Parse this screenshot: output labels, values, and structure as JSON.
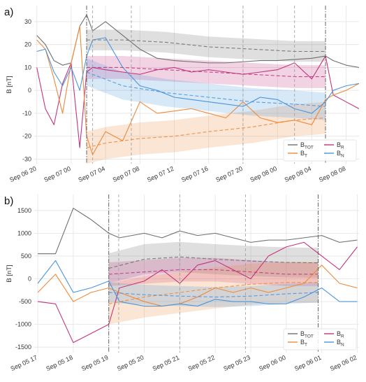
{
  "chart_data": [
    {
      "type": "line",
      "panel_label": "a)",
      "ylabel": "B [nT]",
      "ylim": [
        -32,
        37
      ],
      "yticks": [
        -30,
        -20,
        -10,
        0,
        10,
        20,
        30
      ],
      "xlim": [
        -0.3,
        37.5
      ],
      "xtick_hours": [
        0,
        4,
        8,
        12,
        16,
        20,
        24,
        28,
        32,
        36
      ],
      "xtick_labels": [
        "Sep 06 20",
        "Sep 07 00",
        "Sep 07 04",
        "Sep 07 08",
        "Sep 07 12",
        "Sep 07 16",
        "Sep 07 20",
        "Sep 08 00",
        "Sep 08 04",
        "Sep 08 08"
      ],
      "grid": true,
      "legend_position": "bottom-right",
      "vlines_dashdot": [
        5.8,
        33.6
      ],
      "vlines_dashed": [
        6.5,
        11.0,
        24.0,
        30.0
      ],
      "series": [
        {
          "name": "B",
          "sub": "TOT",
          "color": "#6f6f6f",
          "x": [
            0,
            1,
            2,
            3,
            4,
            5,
            5.8,
            6.5,
            8,
            10,
            12,
            14,
            16,
            18,
            20,
            22,
            24,
            26,
            28,
            30,
            32,
            33.6,
            34.5,
            36,
            37.5
          ],
          "y": [
            24,
            20,
            13,
            11,
            12,
            28,
            33,
            26,
            30,
            24,
            18,
            14,
            13,
            12.5,
            12,
            12,
            12.5,
            13,
            13,
            13.5,
            14,
            15,
            13,
            11,
            10
          ]
        },
        {
          "name": "B",
          "sub": "R",
          "color": "#c2357e",
          "x": [
            0,
            1,
            2,
            3,
            4,
            5,
            5.8,
            6.5,
            8,
            10,
            12,
            14,
            16,
            18,
            20,
            22,
            24,
            26,
            28,
            30,
            32,
            33.6,
            34.5,
            36,
            37.5
          ],
          "y": [
            10,
            -8,
            -15,
            3,
            12,
            -25,
            8,
            10,
            9,
            8,
            7,
            9,
            10,
            8,
            9,
            8,
            7,
            8,
            9,
            12,
            5,
            15,
            -2,
            -5,
            -8
          ]
        },
        {
          "name": "B",
          "sub": "T",
          "color": "#ee8a3a",
          "x": [
            0,
            1,
            2,
            3,
            4,
            5,
            5.8,
            6.5,
            8,
            10,
            12,
            14,
            16,
            18,
            20,
            22,
            24,
            26,
            28,
            30,
            32,
            33.6,
            34.5,
            36,
            37.5
          ],
          "y": [
            22,
            18,
            5,
            -10,
            12,
            28,
            -20,
            -28,
            -18,
            -22,
            -5,
            -10,
            -9,
            -8,
            -10,
            -12,
            -5,
            -12,
            -14,
            -13,
            -15,
            -4,
            -2,
            0,
            3
          ]
        },
        {
          "name": "B",
          "sub": "N",
          "color": "#4a95dc",
          "x": [
            0,
            1,
            2,
            3,
            4,
            5,
            5.8,
            6.5,
            8,
            10,
            12,
            14,
            16,
            18,
            20,
            22,
            24,
            26,
            28,
            30,
            32,
            33.6,
            34.5,
            36,
            37.5
          ],
          "y": [
            17,
            18,
            8,
            2,
            10,
            0,
            15,
            22,
            23,
            10,
            2,
            0,
            -3,
            -4,
            -5,
            -6,
            -7,
            -3,
            -4,
            -8,
            -10,
            -5,
            0,
            2,
            3
          ]
        },
        {
          "name": "B",
          "sub": "TOT",
          "color": "#6f6f6f",
          "style": "model",
          "band_width": 4.5,
          "x": [
            5.8,
            10,
            15,
            20,
            25,
            30,
            33.6
          ],
          "y": [
            22,
            22,
            21,
            19,
            18,
            17,
            17
          ]
        },
        {
          "name": "B",
          "sub": "R",
          "color": "#c2357e",
          "style": "model",
          "band_width": 5,
          "x": [
            5.8,
            10,
            15,
            20,
            25,
            30,
            33.6
          ],
          "y": [
            10,
            10,
            9,
            8,
            7,
            6,
            6
          ]
        },
        {
          "name": "B",
          "sub": "T",
          "color": "#ee8a3a",
          "style": "model",
          "band_width": 7,
          "x": [
            5.8,
            8,
            12,
            16,
            20,
            25,
            30,
            33.6
          ],
          "y": [
            -25,
            -23,
            -21,
            -20,
            -18,
            -16,
            -13,
            -12
          ]
        },
        {
          "name": "B",
          "sub": "N",
          "color": "#4a95dc",
          "style": "model",
          "band_width": 6,
          "x": [
            5.8,
            10,
            15,
            20,
            25,
            30,
            33.6
          ],
          "y": [
            8,
            2,
            -1,
            -3,
            -5,
            -6,
            -7
          ]
        }
      ]
    },
    {
      "type": "line",
      "panel_label": "b)",
      "ylabel": "B [nT]",
      "ylim": [
        -1620,
        1850
      ],
      "yticks": [
        -1500,
        -1000,
        -500,
        0,
        500,
        1000,
        1500
      ],
      "xlim": [
        -0.1,
        9.05
      ],
      "xtick_hours": [
        0,
        1,
        2,
        3,
        4,
        5,
        6,
        7,
        8,
        9
      ],
      "xtick_labels": [
        "Sep 05 17",
        "Sep 05 18",
        "Sep 05 19",
        "Sep 05 20",
        "Sep 05 21",
        "Sep 05 22",
        "Sep 05 23",
        "Sep 06 00",
        "Sep 06 01",
        "Sep 06 02"
      ],
      "grid": true,
      "legend_position": "bottom-right",
      "vlines_dashdot": [
        2.0,
        7.9
      ],
      "vlines_dashed": [
        2.28,
        4.0,
        5.85
      ],
      "series": [
        {
          "name": "B",
          "sub": "TOT",
          "color": "#6f6f6f",
          "x": [
            0,
            0.5,
            1,
            1.5,
            2,
            2.3,
            3,
            3.5,
            4,
            4.5,
            5,
            5.5,
            6,
            6.5,
            7,
            7.5,
            8,
            8.5,
            9
          ],
          "y": [
            550,
            550,
            1550,
            1300,
            1000,
            900,
            1000,
            900,
            1050,
            950,
            1000,
            900,
            800,
            850,
            850,
            900,
            950,
            800,
            850
          ]
        },
        {
          "name": "B",
          "sub": "R",
          "color": "#c2357e",
          "x": [
            0,
            0.5,
            1,
            1.5,
            2,
            2.3,
            3,
            3.5,
            4,
            4.5,
            5,
            5.5,
            6,
            6.5,
            7,
            7.5,
            8,
            8.5,
            9
          ],
          "y": [
            -500,
            -550,
            -1400,
            -1200,
            -1000,
            -200,
            -50,
            200,
            -100,
            300,
            400,
            200,
            0,
            500,
            700,
            800,
            500,
            200,
            700
          ]
        },
        {
          "name": "B",
          "sub": "T",
          "color": "#ee8a3a",
          "x": [
            0,
            0.5,
            1,
            1.5,
            2,
            2.3,
            3,
            3.5,
            4,
            4.5,
            5,
            5.5,
            6,
            6.5,
            7,
            7.5,
            8,
            8.5,
            9
          ],
          "y": [
            -300,
            100,
            -500,
            -300,
            -200,
            -300,
            -500,
            -600,
            -550,
            -400,
            -200,
            -300,
            -200,
            -300,
            -200,
            -100,
            300,
            -100,
            -200
          ]
        },
        {
          "name": "B",
          "sub": "N",
          "color": "#4a95dc",
          "x": [
            0,
            0.5,
            1,
            1.5,
            2,
            2.3,
            3,
            3.5,
            4,
            4.5,
            5,
            5.5,
            6,
            6.5,
            7,
            7.5,
            8,
            8.5,
            9
          ],
          "y": [
            -100,
            400,
            -300,
            -200,
            -50,
            -500,
            -600,
            -600,
            -550,
            -600,
            -450,
            -500,
            -500,
            -550,
            -550,
            -400,
            -200,
            -500,
            -500
          ]
        },
        {
          "name": "B",
          "sub": "TOT",
          "color": "#6f6f6f",
          "style": "model",
          "band_width": 330,
          "x": [
            2.0,
            3,
            4,
            5,
            6,
            7,
            7.9
          ],
          "y": [
            230,
            430,
            480,
            430,
            390,
            360,
            350
          ]
        },
        {
          "name": "B",
          "sub": "R",
          "color": "#c2357e",
          "style": "model",
          "band_width": 260,
          "x": [
            2.0,
            3,
            4,
            5,
            6,
            7,
            7.9
          ],
          "y": [
            100,
            150,
            200,
            200,
            150,
            100,
            100
          ]
        },
        {
          "name": "B",
          "sub": "T",
          "color": "#ee8a3a",
          "style": "model",
          "band_width": 450,
          "x": [
            2.0,
            3,
            4,
            5,
            6,
            7,
            7.9
          ],
          "y": [
            -550,
            -400,
            -300,
            -200,
            -120,
            -80,
            -80
          ]
        },
        {
          "name": "B",
          "sub": "N",
          "color": "#4a95dc",
          "style": "model",
          "band_width": 220,
          "x": [
            2.0,
            3,
            4,
            5,
            6,
            7,
            7.9
          ],
          "y": [
            -300,
            -350,
            -380,
            -400,
            -380,
            -330,
            -300
          ]
        }
      ]
    }
  ]
}
